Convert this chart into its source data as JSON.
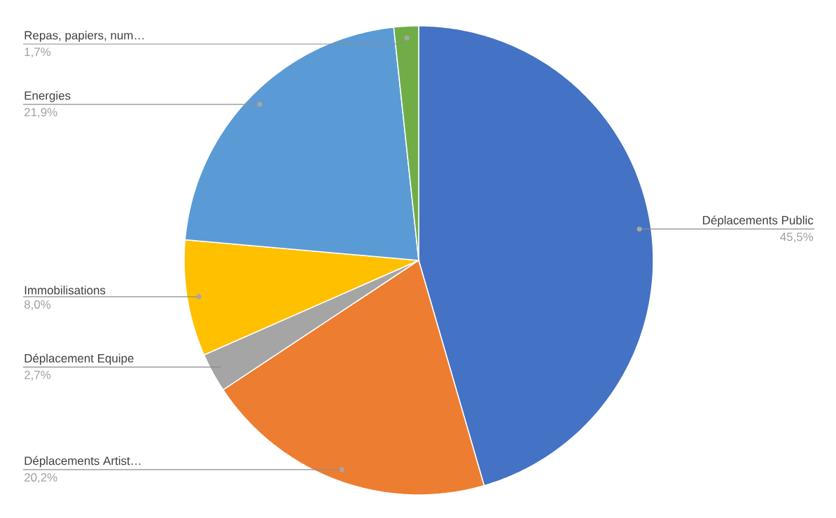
{
  "chart_data": {
    "type": "pie",
    "categories": [
      "Déplacements Public",
      "Déplacements Artist…",
      "Déplacement Equipe",
      "Immobilisations",
      "Energies",
      "Repas, papiers, num…"
    ],
    "values": [
      45.5,
      20.2,
      2.7,
      8.0,
      21.9,
      1.7
    ],
    "colors": [
      "#4472c4",
      "#ed7d31",
      "#a5a5a5",
      "#ffc000",
      "#5b9bd5",
      "#70ad47"
    ],
    "value_labels": [
      "45,5%",
      "20,2%",
      "2,7%",
      "8,0%",
      "21,9%",
      "1,7%"
    ]
  }
}
